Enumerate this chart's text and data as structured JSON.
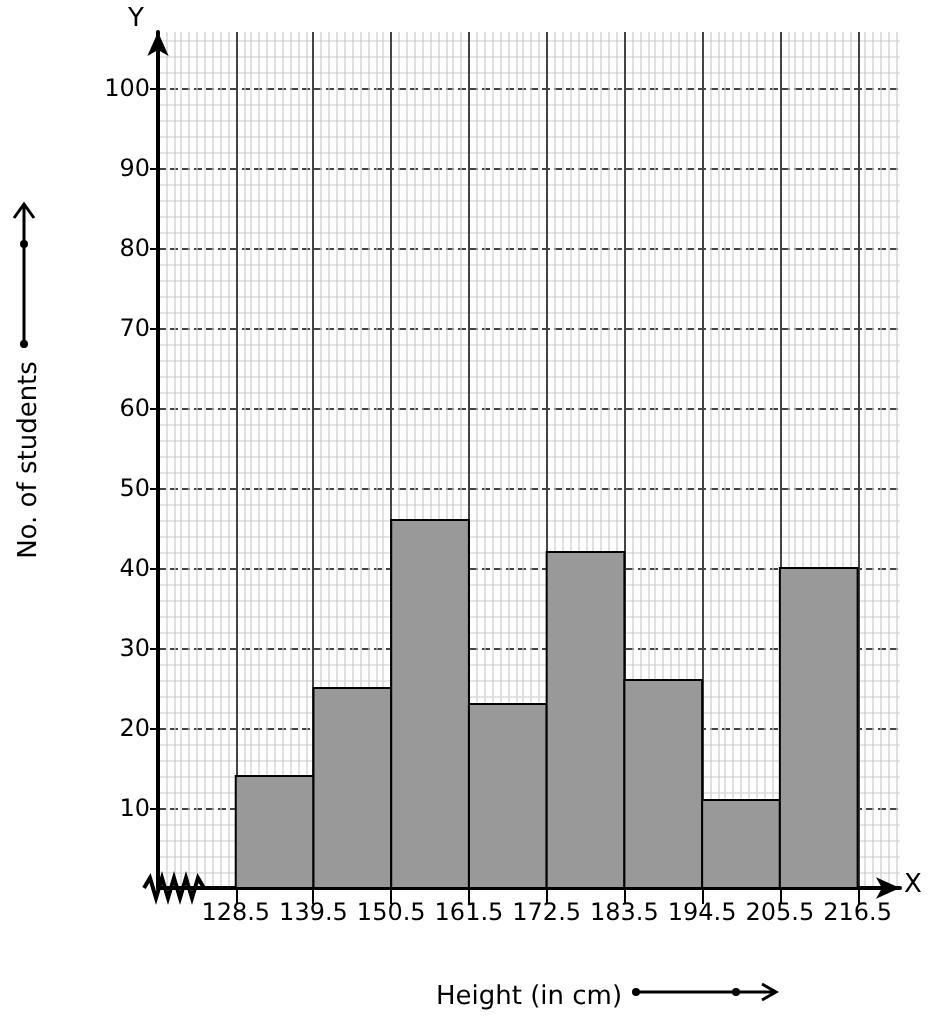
{
  "chart_data": {
    "type": "histogram",
    "xlabel": "Height (in cm)",
    "ylabel": "No. of students",
    "bins": [
      128.5,
      139.5,
      150.5,
      161.5,
      172.5,
      183.5,
      194.5,
      205.5,
      216.5
    ],
    "values": [
      14,
      25,
      46,
      23,
      42,
      26,
      11,
      40
    ],
    "color": "#999999",
    "xlim": [
      117.5,
      222.5
    ],
    "xticks": [
      128.5,
      139.5,
      150.5,
      161.5,
      172.5,
      183.5,
      194.5,
      205.5,
      216.5
    ],
    "ylim": [
      0,
      107
    ],
    "yticks": [
      10,
      20,
      30,
      40,
      50,
      60,
      70,
      80,
      90,
      100
    ],
    "annotations": [
      "X",
      "Y"
    ],
    "grid": true
  }
}
